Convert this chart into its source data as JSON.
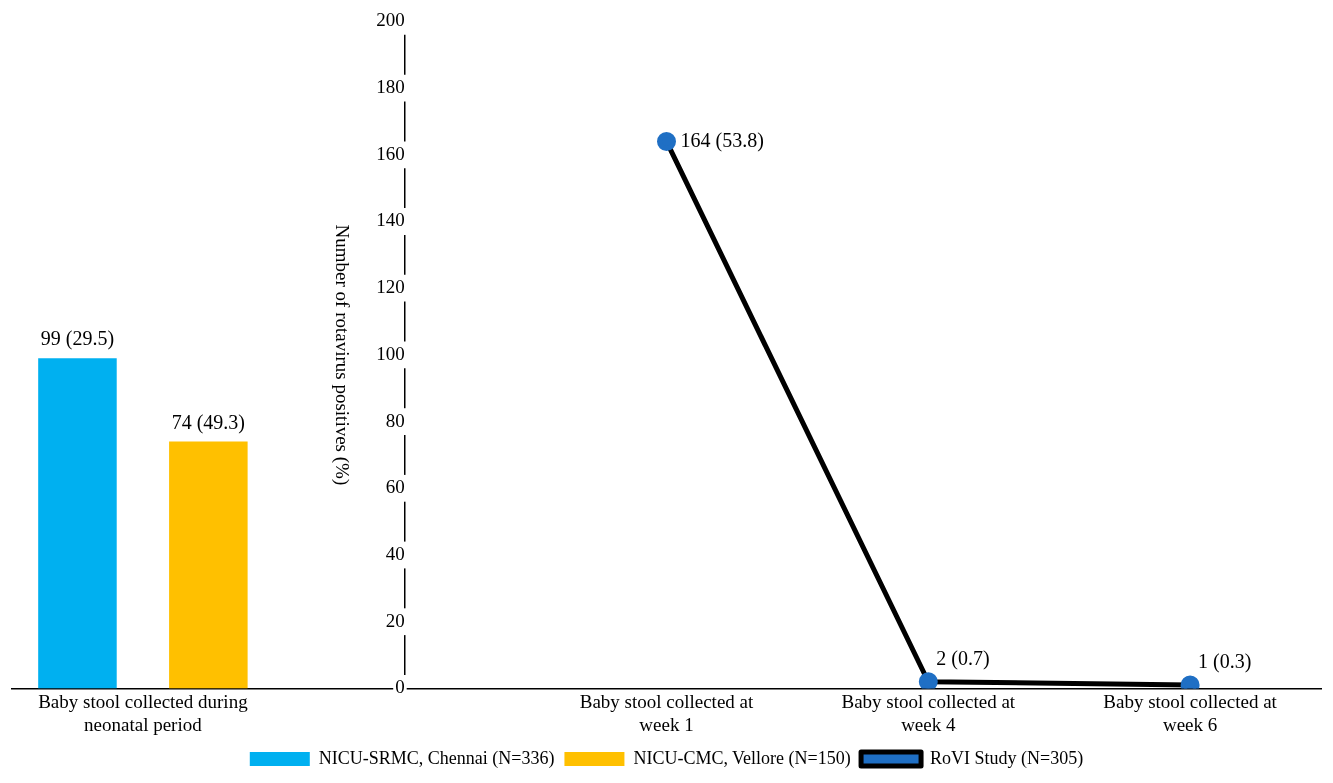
{
  "chart_data": {
    "type": "bar",
    "ylabel": "Number of rotavirus positives (%)",
    "categories": [
      "Baby stool collected during neonatal period",
      null,
      "Baby stool collected at week 1",
      "Baby stool collected at week 4",
      "Baby stool collected at week 6"
    ],
    "series": [
      {
        "name": "NICU-SRMC, Chennai (N=336)",
        "color": "#00b0f0",
        "values": [
          99,
          null,
          null,
          null,
          null
        ],
        "value_labels": [
          "99 (29.5)",
          null,
          null,
          null,
          null
        ]
      },
      {
        "name": "NICU-CMC, Vellore (N=150)",
        "color": "#ffc000",
        "values": [
          74,
          null,
          null,
          null,
          null
        ],
        "value_labels": [
          "74 (49.3)",
          null,
          null,
          null,
          null
        ]
      },
      {
        "name": "RoVI Study (N=305)",
        "type": "line",
        "color": "#000000",
        "marker": "circle",
        "values": [
          null,
          null,
          164,
          2,
          1
        ],
        "value_labels": [
          null,
          null,
          "164 (53.8)",
          "2 (0.7)",
          "1 (0.3)"
        ]
      }
    ],
    "ylim": [
      0,
      200
    ],
    "yticks": [
      0,
      20,
      40,
      60,
      80,
      100,
      120,
      140,
      160,
      180,
      200
    ],
    "grid": false,
    "legend": "bottom"
  }
}
